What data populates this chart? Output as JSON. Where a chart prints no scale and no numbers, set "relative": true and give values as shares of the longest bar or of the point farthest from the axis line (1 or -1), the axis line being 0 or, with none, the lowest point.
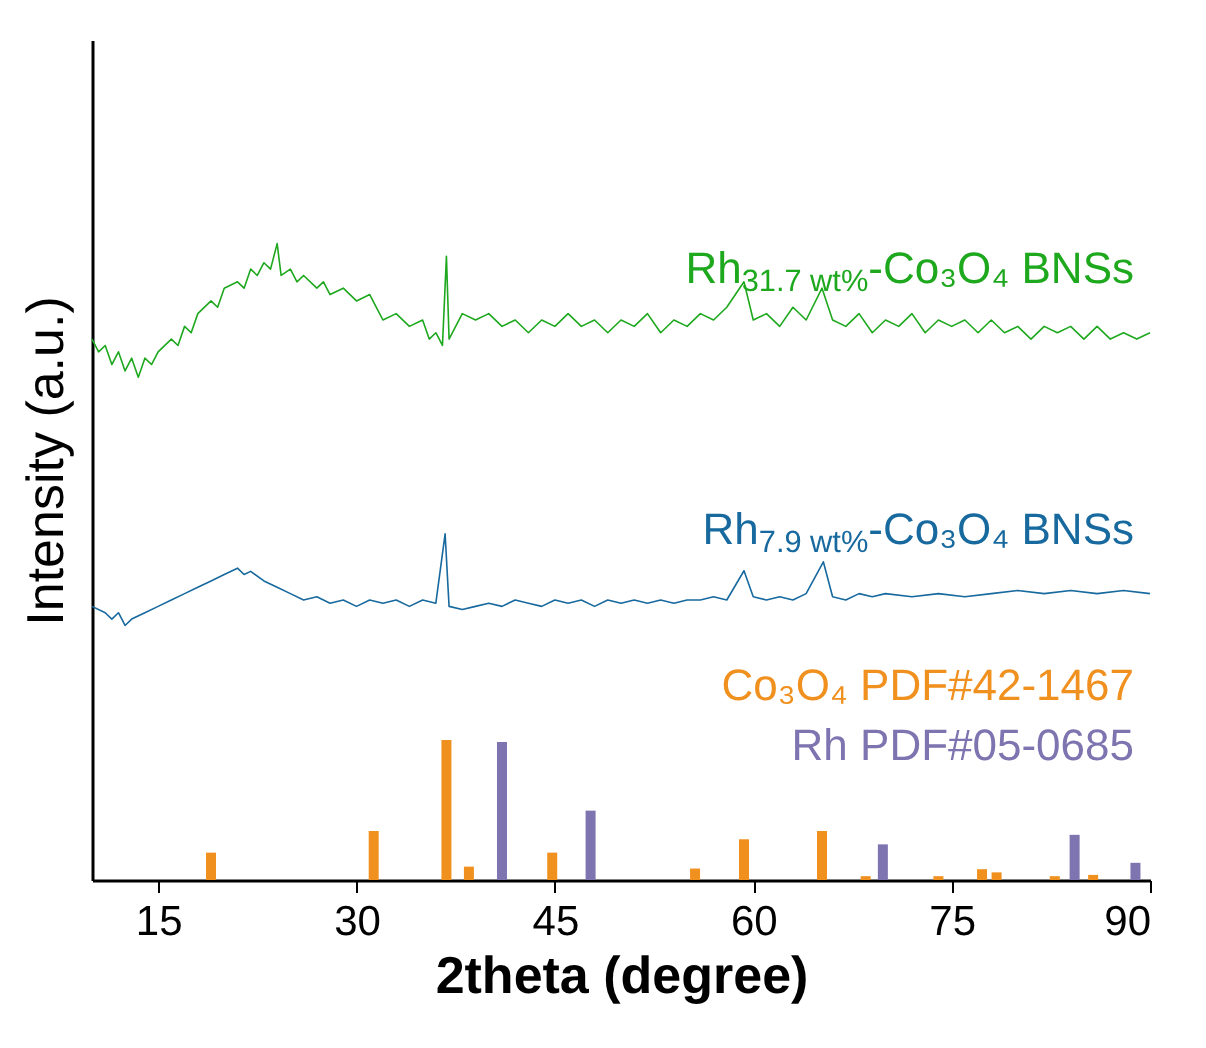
{
  "chart_data": {
    "type": "line",
    "relative": true,
    "xlabel": "2theta (degree)",
    "ylabel": "Intensity (a.u.)",
    "xlim": [
      10,
      90
    ],
    "xticks": [
      15,
      30,
      45,
      60,
      75,
      90
    ],
    "series": [
      {
        "name": "Rh$_{31.7 wt%}$-Co₃O₄ BNSs",
        "color": "#1ea81e",
        "x": [
          10,
          10.5,
          11,
          11.5,
          12,
          12.5,
          13,
          13.5,
          14,
          14.5,
          15,
          16,
          16.5,
          17,
          17.5,
          18,
          19,
          19.5,
          20,
          21,
          21.5,
          22,
          22.5,
          23,
          23.5,
          24,
          24.3,
          25,
          25.5,
          26,
          27,
          27.5,
          28,
          29,
          30,
          31,
          31.5,
          32,
          33,
          34,
          35,
          35.5,
          36,
          36.5,
          36.8,
          37,
          37.5,
          38,
          39,
          40,
          41,
          42,
          43,
          44,
          45,
          46,
          47,
          48,
          49,
          50,
          51,
          52,
          53,
          54,
          55,
          56,
          57,
          58,
          59.3,
          60,
          61,
          62,
          63,
          64,
          65.2,
          66,
          67,
          68,
          69,
          70,
          71,
          72,
          73,
          74,
          75,
          76,
          77,
          78,
          79,
          80,
          81,
          82,
          83,
          84,
          85,
          86,
          87,
          88,
          89,
          90
        ],
        "values": [
          0.85,
          0.83,
          0.84,
          0.81,
          0.83,
          0.8,
          0.82,
          0.79,
          0.82,
          0.81,
          0.83,
          0.85,
          0.84,
          0.87,
          0.86,
          0.89,
          0.91,
          0.9,
          0.93,
          0.94,
          0.93,
          0.96,
          0.95,
          0.97,
          0.96,
          1.0,
          0.95,
          0.96,
          0.94,
          0.95,
          0.93,
          0.94,
          0.92,
          0.93,
          0.91,
          0.92,
          0.9,
          0.88,
          0.89,
          0.87,
          0.88,
          0.85,
          0.86,
          0.84,
          0.98,
          0.85,
          0.87,
          0.89,
          0.88,
          0.89,
          0.87,
          0.88,
          0.86,
          0.88,
          0.87,
          0.89,
          0.87,
          0.88,
          0.86,
          0.88,
          0.87,
          0.89,
          0.86,
          0.88,
          0.87,
          0.89,
          0.88,
          0.9,
          0.94,
          0.88,
          0.89,
          0.87,
          0.9,
          0.88,
          0.93,
          0.88,
          0.87,
          0.89,
          0.86,
          0.88,
          0.87,
          0.89,
          0.86,
          0.88,
          0.87,
          0.88,
          0.86,
          0.88,
          0.86,
          0.87,
          0.85,
          0.87,
          0.86,
          0.87,
          0.85,
          0.87,
          0.85,
          0.86,
          0.85,
          0.86
        ]
      },
      {
        "name": "Rh$_{7.9 wt%}$-Co₃O₄ BNSs",
        "color": "#17699e",
        "x": [
          10,
          11,
          11.5,
          12,
          12.5,
          13,
          14,
          15,
          16,
          17,
          18,
          19,
          20,
          21,
          21.5,
          22,
          23,
          24,
          25,
          26,
          27,
          28,
          29,
          30,
          31,
          32,
          33,
          34,
          35,
          36,
          36.7,
          37,
          38,
          39,
          40,
          41,
          42,
          43,
          44,
          45,
          46,
          47,
          48,
          49,
          50,
          51,
          52,
          53,
          54,
          55,
          56,
          57,
          58,
          59.3,
          60,
          61,
          62,
          63,
          64,
          65.3,
          66,
          67,
          68,
          69,
          70,
          72,
          74,
          76,
          78,
          80,
          82,
          84,
          86,
          88,
          90
        ],
        "values": [
          0.43,
          0.42,
          0.41,
          0.42,
          0.4,
          0.41,
          0.42,
          0.43,
          0.44,
          0.45,
          0.46,
          0.47,
          0.48,
          0.49,
          0.48,
          0.485,
          0.47,
          0.46,
          0.45,
          0.44,
          0.445,
          0.435,
          0.44,
          0.43,
          0.44,
          0.435,
          0.44,
          0.43,
          0.44,
          0.435,
          0.544,
          0.43,
          0.425,
          0.43,
          0.435,
          0.43,
          0.44,
          0.435,
          0.43,
          0.44,
          0.435,
          0.44,
          0.43,
          0.44,
          0.435,
          0.44,
          0.435,
          0.44,
          0.435,
          0.44,
          0.44,
          0.445,
          0.44,
          0.486,
          0.445,
          0.44,
          0.445,
          0.44,
          0.45,
          0.5,
          0.445,
          0.44,
          0.45,
          0.445,
          0.45,
          0.445,
          0.45,
          0.445,
          0.45,
          0.455,
          0.45,
          0.455,
          0.45,
          0.455,
          0.45
        ]
      },
      {
        "name": "Co₃O₄ PDF#42-1467",
        "color": "#f0901e",
        "type": "bar",
        "x": [
          19.0,
          31.3,
          36.8,
          38.5,
          44.8,
          55.6,
          59.3,
          65.2,
          68.5,
          74.0,
          77.3,
          78.4,
          82.8,
          85.7
        ],
        "values": [
          0.043,
          0.077,
          0.22,
          0.021,
          0.043,
          0.018,
          0.064,
          0.077,
          0.006,
          0.006,
          0.017,
          0.012,
          0.006,
          0.008
        ]
      },
      {
        "name": "Rh PDF#05-0685",
        "color": "#7d74b0",
        "type": "bar",
        "x": [
          41.0,
          47.7,
          69.8,
          84.3,
          88.9
        ],
        "values": [
          0.217,
          0.109,
          0.056,
          0.071,
          0.027
        ]
      }
    ]
  }
}
